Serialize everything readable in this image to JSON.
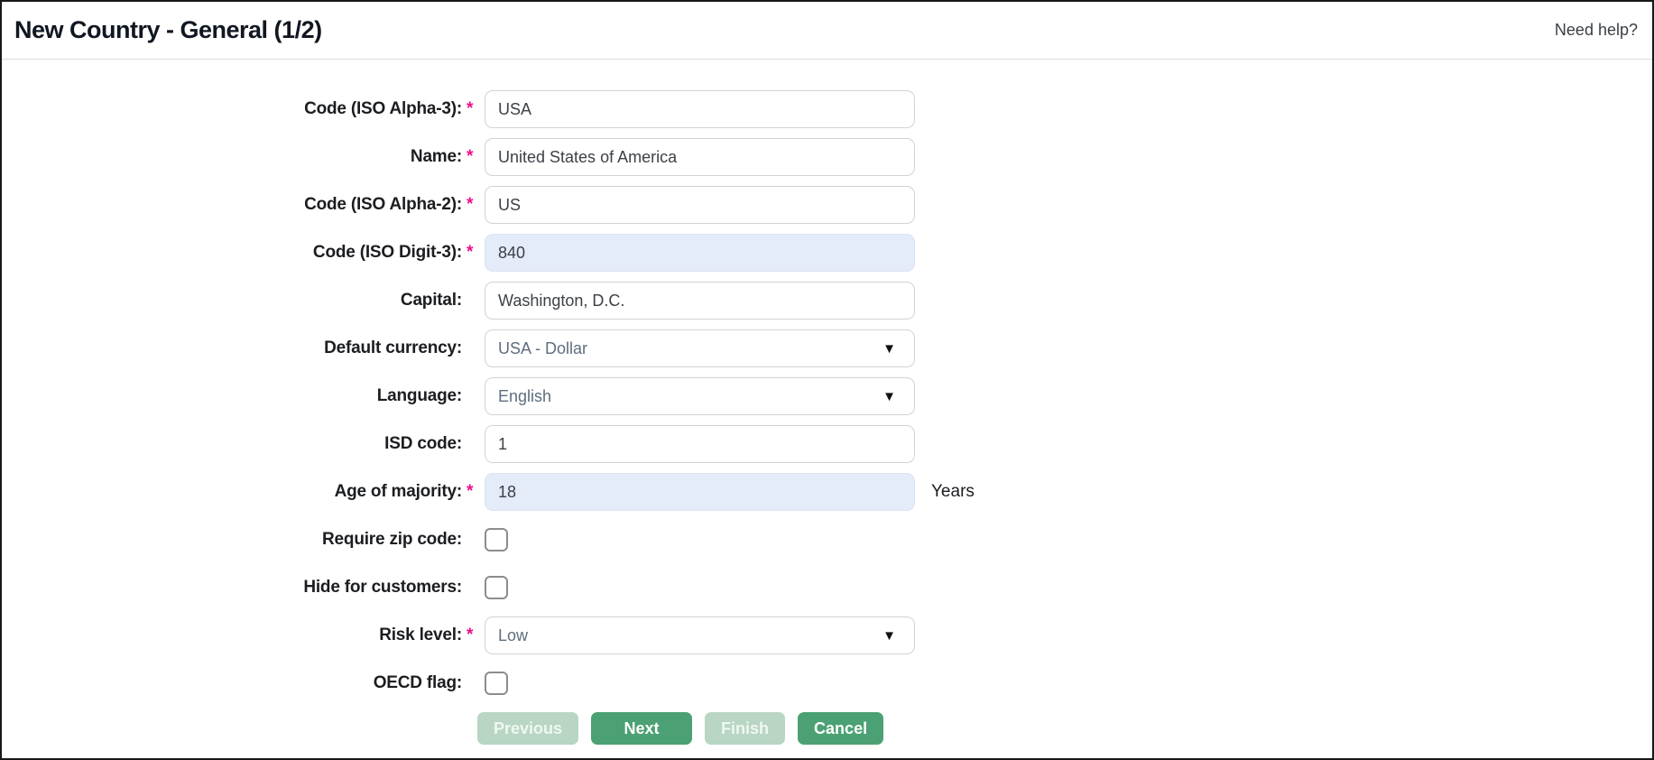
{
  "header": {
    "title": "New Country - General (1/2)",
    "help_link": "Need help?"
  },
  "colors": {
    "accent_green": "#4ba173",
    "disabled_green": "#b8d6c3",
    "highlight_blue": "#e4ebf9",
    "required_pink": "#ed0e8c",
    "header_text": "#101721",
    "select_text": "#5e6d7d"
  },
  "form": {
    "fields": [
      {
        "name": "code-iso-alpha-3",
        "label": "Code (ISO Alpha-3):",
        "required": true,
        "type": "text",
        "value": "USA",
        "highlighted": false
      },
      {
        "name": "country-name",
        "label": "Name:",
        "required": true,
        "type": "text",
        "value": "United States of America",
        "highlighted": false
      },
      {
        "name": "code-iso-alpha-2",
        "label": "Code (ISO Alpha-2):",
        "required": true,
        "type": "text",
        "value": "US",
        "highlighted": false
      },
      {
        "name": "code-iso-digit-3",
        "label": "Code (ISO Digit-3):",
        "required": true,
        "type": "text",
        "value": "840",
        "highlighted": true
      },
      {
        "name": "capital",
        "label": "Capital:",
        "required": false,
        "type": "text",
        "value": "Washington, D.C.",
        "highlighted": false
      },
      {
        "name": "default-currency",
        "label": "Default currency:",
        "required": false,
        "type": "select",
        "value": "USA - Dollar"
      },
      {
        "name": "language",
        "label": "Language:",
        "required": false,
        "type": "select",
        "value": "English"
      },
      {
        "name": "isd-code",
        "label": "ISD code:",
        "required": false,
        "type": "text",
        "value": "1",
        "highlighted": false
      },
      {
        "name": "age-of-majority",
        "label": "Age of majority:",
        "required": true,
        "type": "text",
        "value": "18",
        "highlighted": true,
        "suffix": "Years"
      },
      {
        "name": "require-zip-code",
        "label": "Require zip code:",
        "required": false,
        "type": "checkbox",
        "checked": false
      },
      {
        "name": "hide-for-customers",
        "label": "Hide for customers:",
        "required": false,
        "type": "checkbox",
        "checked": false
      },
      {
        "name": "risk-level",
        "label": "Risk level:",
        "required": true,
        "type": "select",
        "value": "Low"
      },
      {
        "name": "oecd-flag",
        "label": "OECD flag:",
        "required": false,
        "type": "checkbox",
        "checked": false
      }
    ],
    "buttons": [
      {
        "name": "previous",
        "label": "Previous",
        "enabled": false,
        "wide": true
      },
      {
        "name": "next",
        "label": "Next",
        "enabled": true,
        "wide": true
      },
      {
        "name": "finish",
        "label": "Finish",
        "enabled": false,
        "wide": false
      },
      {
        "name": "cancel",
        "label": "Cancel",
        "enabled": true,
        "wide": false
      }
    ],
    "dropdown_arrow_icon": "▼"
  }
}
